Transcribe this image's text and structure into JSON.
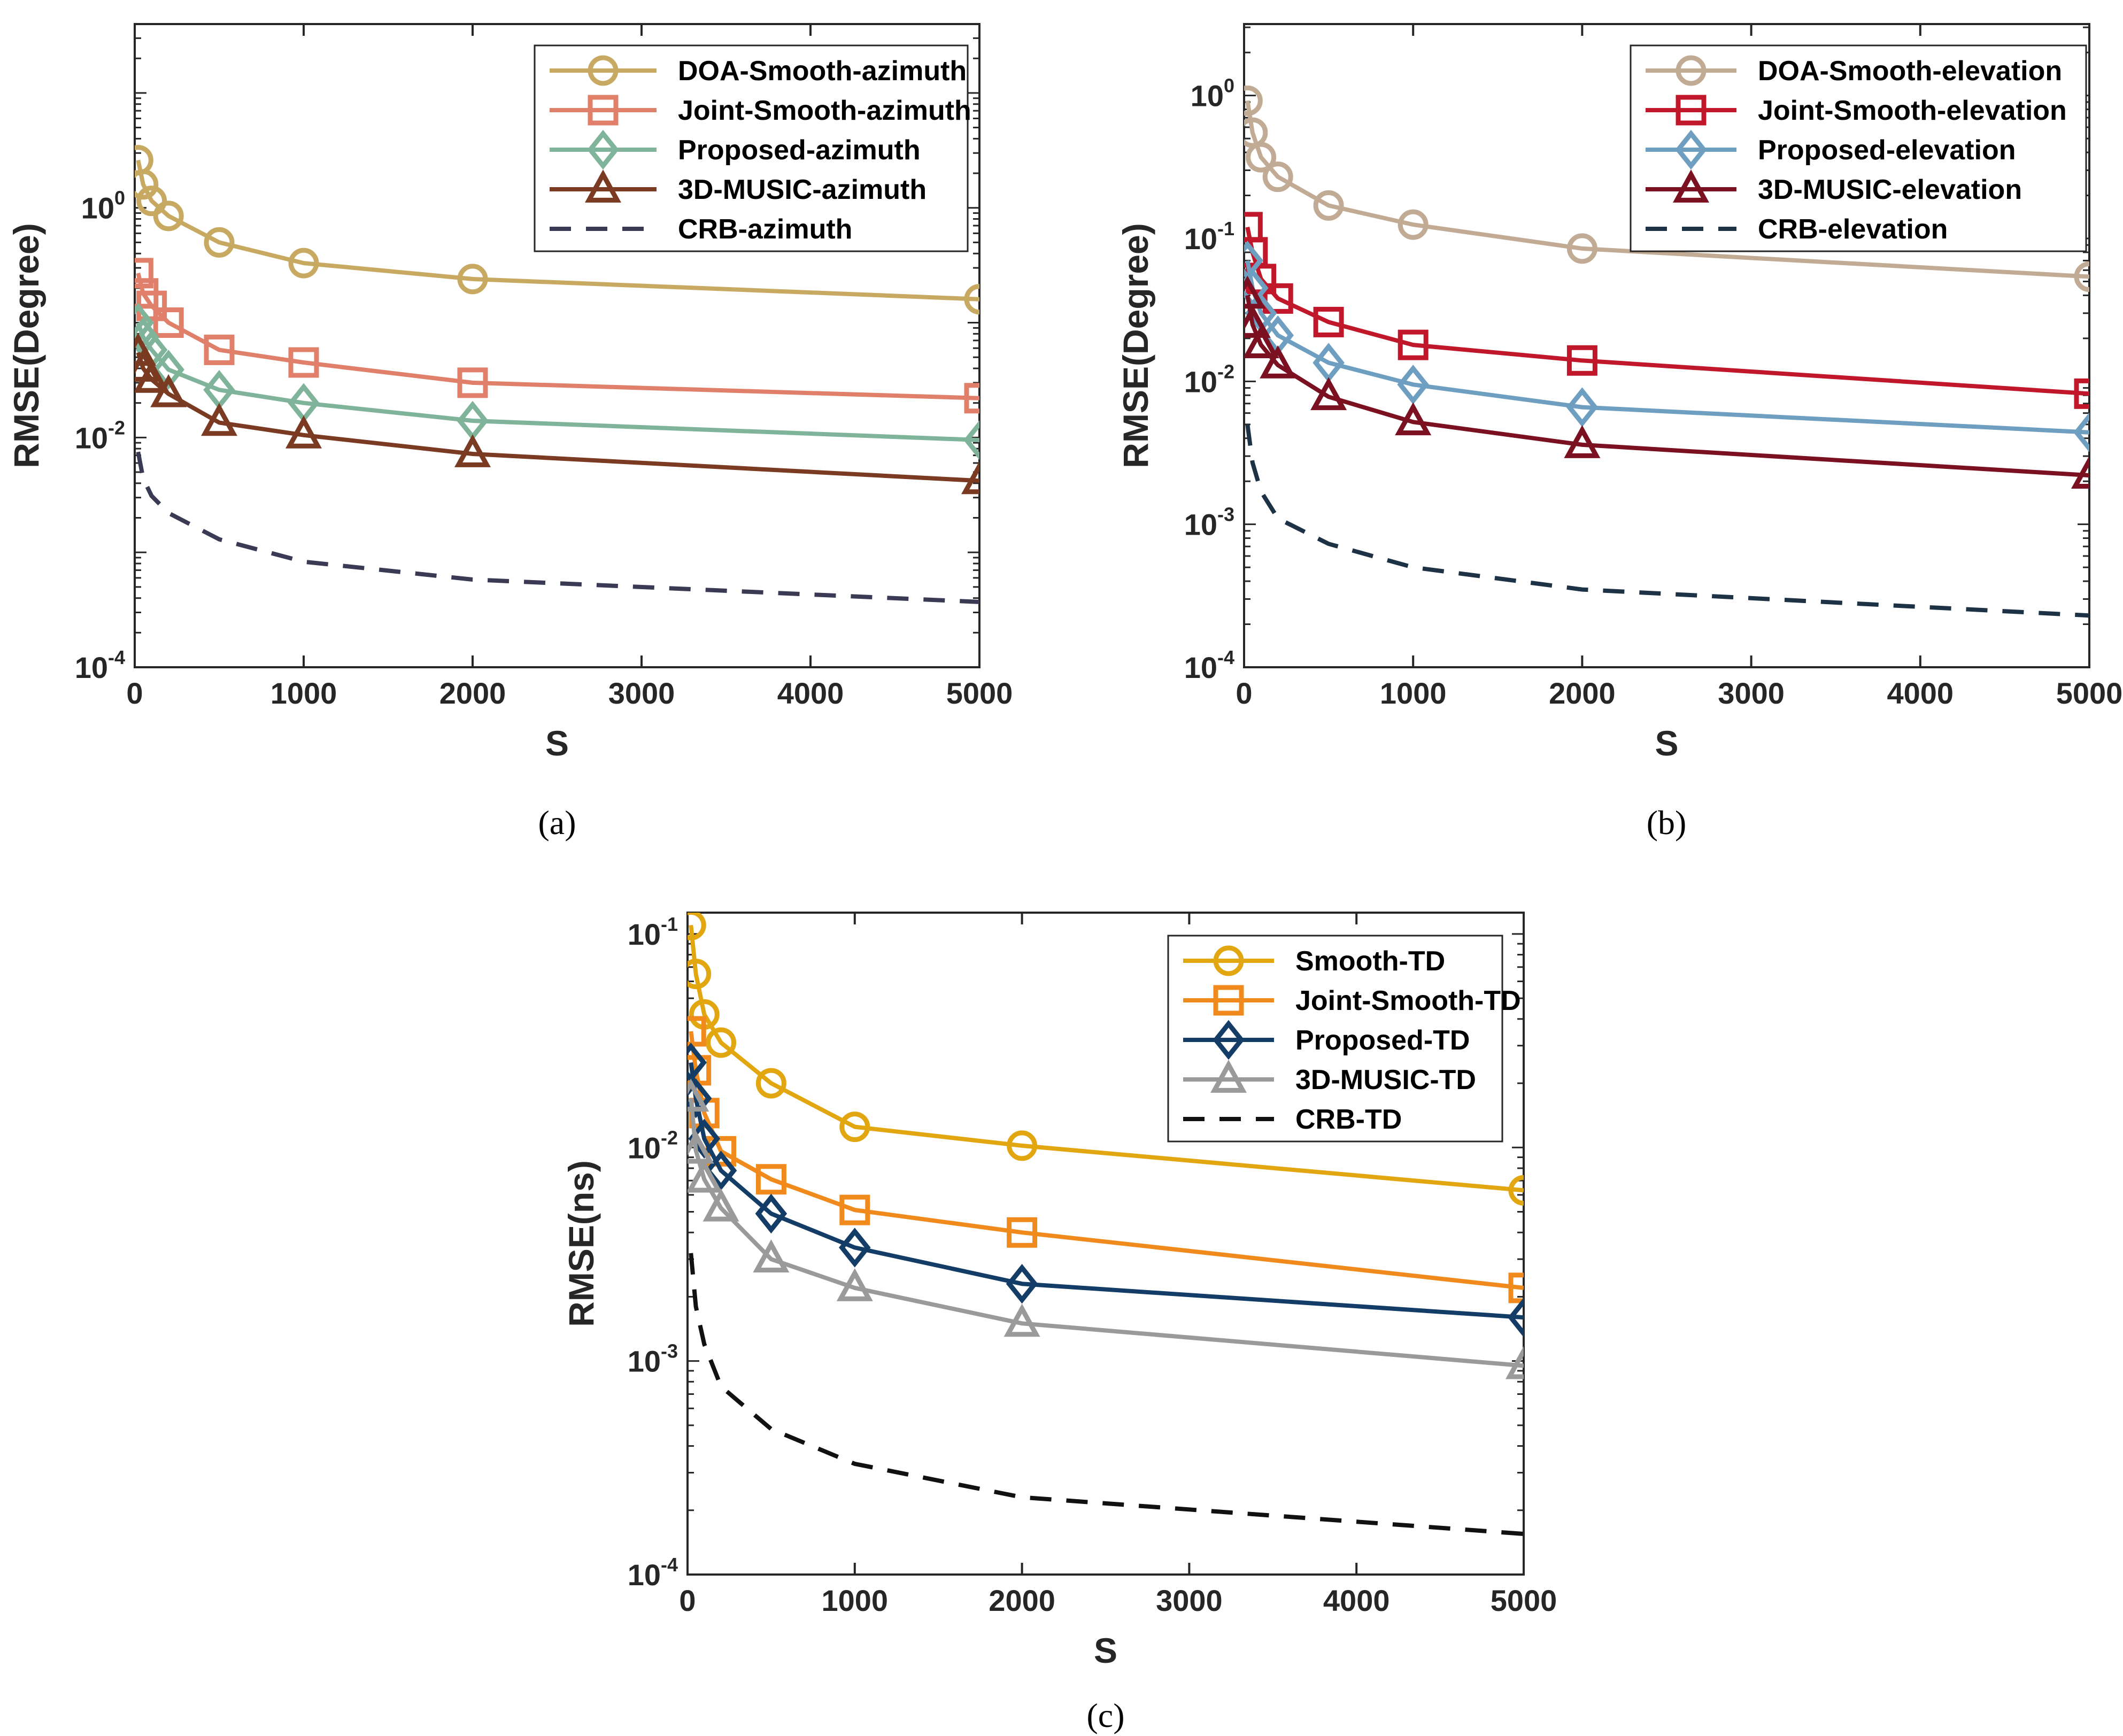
{
  "chart_data": [
    {
      "type": "line",
      "panel": "a",
      "caption": "(a)",
      "xlabel": "S",
      "ylabel": "RMSE(Degree)",
      "xlim": [
        0,
        5000
      ],
      "ylim_log10": [
        -4,
        1.6
      ],
      "yscale": "log",
      "x_ticks": [
        0,
        1000,
        2000,
        3000,
        4000,
        5000
      ],
      "x_tick_labels": [
        "0",
        "1000",
        "2000",
        "3000",
        "4000",
        "5000"
      ],
      "y_ticks_exp": [
        -4,
        -2,
        0
      ],
      "y_tick_labels": [
        {
          "base": "10",
          "exp": "-4"
        },
        {
          "base": "10",
          "exp": "-2"
        },
        {
          "base": "10",
          "exp": "0"
        }
      ],
      "legend_position": "top-right",
      "series": [
        {
          "name": "DOA-Smooth-azimuth",
          "color": "#C8A961",
          "marker": "circle",
          "dash": false,
          "x": [
            20,
            50,
            100,
            200,
            500,
            1000,
            2000,
            5000
          ],
          "values": [
            2.6,
            1.6,
            1.15,
            0.85,
            0.5,
            0.33,
            0.24,
            0.16
          ]
        },
        {
          "name": "Joint-Smooth-azimuth",
          "color": "#E0806A",
          "marker": "square",
          "dash": false,
          "x": [
            20,
            50,
            100,
            200,
            500,
            1000,
            2000,
            5000
          ],
          "values": [
            0.27,
            0.18,
            0.14,
            0.1,
            0.058,
            0.045,
            0.03,
            0.022
          ]
        },
        {
          "name": "Proposed-azimuth",
          "color": "#80B49A",
          "marker": "diamond",
          "dash": false,
          "x": [
            20,
            50,
            100,
            200,
            500,
            1000,
            2000,
            5000
          ],
          "values": [
            0.1,
            0.075,
            0.058,
            0.039,
            0.026,
            0.02,
            0.014,
            0.0095
          ]
        },
        {
          "name": "3D-MUSIC-azimuth",
          "color": "#7B3A22",
          "marker": "triangle",
          "dash": false,
          "x": [
            20,
            50,
            100,
            200,
            500,
            1000,
            2000,
            5000
          ],
          "values": [
            0.055,
            0.04,
            0.032,
            0.024,
            0.0135,
            0.0105,
            0.0072,
            0.0042
          ]
        },
        {
          "name": "CRB-azimuth",
          "color": "#3A3A55",
          "marker": "none",
          "dash": true,
          "x": [
            20,
            50,
            100,
            200,
            500,
            1000,
            2000,
            5000
          ],
          "values": [
            0.0075,
            0.0044,
            0.0031,
            0.0022,
            0.0013,
            0.00083,
            0.00058,
            0.00037
          ]
        }
      ]
    },
    {
      "type": "line",
      "panel": "b",
      "caption": "(b)",
      "xlabel": "S",
      "ylabel": "RMSE(Degree)",
      "xlim": [
        0,
        5000
      ],
      "ylim_log10": [
        -4,
        0.5
      ],
      "yscale": "log",
      "x_ticks": [
        0,
        1000,
        2000,
        3000,
        4000,
        5000
      ],
      "x_tick_labels": [
        "0",
        "1000",
        "2000",
        "3000",
        "4000",
        "5000"
      ],
      "y_ticks_exp": [
        -4,
        -3,
        -2,
        -1,
        0
      ],
      "y_tick_labels": [
        {
          "base": "10",
          "exp": "-4"
        },
        {
          "base": "10",
          "exp": "-3"
        },
        {
          "base": "10",
          "exp": "-2"
        },
        {
          "base": "10",
          "exp": "-1"
        },
        {
          "base": "10",
          "exp": "0"
        }
      ],
      "legend_position": "top-right",
      "series": [
        {
          "name": "DOA-Smooth-elevation",
          "color": "#C1AB94",
          "marker": "circle",
          "dash": false,
          "x": [
            20,
            50,
            100,
            200,
            500,
            1000,
            2000,
            5000
          ],
          "values": [
            0.92,
            0.55,
            0.37,
            0.27,
            0.17,
            0.125,
            0.085,
            0.054
          ]
        },
        {
          "name": "Joint-Smooth-elevation",
          "color": "#C0182A",
          "marker": "square",
          "dash": false,
          "x": [
            20,
            50,
            100,
            200,
            500,
            1000,
            2000,
            5000
          ],
          "values": [
            0.12,
            0.08,
            0.052,
            0.038,
            0.026,
            0.018,
            0.014,
            0.0082
          ]
        },
        {
          "name": "Proposed-elevation",
          "color": "#6E9EC0",
          "marker": "diamond",
          "dash": false,
          "x": [
            20,
            50,
            100,
            200,
            500,
            1000,
            2000,
            5000
          ],
          "values": [
            0.07,
            0.045,
            0.03,
            0.021,
            0.0135,
            0.0095,
            0.0066,
            0.0044
          ]
        },
        {
          "name": "3D-MUSIC-elevation",
          "color": "#7A1020",
          "marker": "triangle",
          "dash": false,
          "x": [
            20,
            50,
            100,
            200,
            500,
            1000,
            2000,
            5000
          ],
          "values": [
            0.04,
            0.025,
            0.018,
            0.013,
            0.0078,
            0.0052,
            0.0036,
            0.0022
          ]
        },
        {
          "name": "CRB-elevation",
          "color": "#1E3246",
          "marker": "none",
          "dash": true,
          "x": [
            20,
            50,
            100,
            200,
            500,
            1000,
            2000,
            5000
          ],
          "values": [
            0.005,
            0.0027,
            0.0017,
            0.0011,
            0.00073,
            0.0005,
            0.00035,
            0.00023
          ]
        }
      ]
    },
    {
      "type": "line",
      "panel": "c",
      "caption": "(c)",
      "xlabel": "S",
      "ylabel": "RMSE(ns)",
      "xlim": [
        0,
        5000
      ],
      "ylim_log10": [
        -4,
        -0.9
      ],
      "yscale": "log",
      "x_ticks": [
        0,
        1000,
        2000,
        3000,
        4000,
        5000
      ],
      "x_tick_labels": [
        "0",
        "1000",
        "2000",
        "3000",
        "4000",
        "5000"
      ],
      "y_ticks_exp": [
        -4,
        -3,
        -2,
        -1
      ],
      "y_tick_labels": [
        {
          "base": "10",
          "exp": "-4"
        },
        {
          "base": "10",
          "exp": "-3"
        },
        {
          "base": "10",
          "exp": "-2"
        },
        {
          "base": "10",
          "exp": "-1"
        }
      ],
      "legend_position": "top-right",
      "series": [
        {
          "name": "Smooth-TD",
          "color": "#E2A610",
          "marker": "circle",
          "dash": false,
          "x": [
            20,
            50,
            100,
            200,
            500,
            1000,
            2000,
            5000
          ],
          "values": [
            0.11,
            0.065,
            0.042,
            0.031,
            0.02,
            0.0125,
            0.0102,
            0.0063
          ]
        },
        {
          "name": "Joint-Smooth-TD",
          "color": "#F08A1C",
          "marker": "square",
          "dash": false,
          "x": [
            20,
            50,
            100,
            200,
            500,
            1000,
            2000,
            5000
          ],
          "values": [
            0.035,
            0.023,
            0.0145,
            0.0096,
            0.0071,
            0.0051,
            0.004,
            0.0022
          ]
        },
        {
          "name": "Proposed-TD",
          "color": "#133D66",
          "marker": "diamond",
          "dash": false,
          "x": [
            20,
            50,
            100,
            200,
            500,
            1000,
            2000,
            5000
          ],
          "values": [
            0.025,
            0.017,
            0.011,
            0.0078,
            0.0049,
            0.0034,
            0.0023,
            0.0016
          ]
        },
        {
          "name": "3D-MUSIC-TD",
          "color": "#9A9A9A",
          "marker": "triangle",
          "dash": false,
          "x": [
            20,
            50,
            100,
            200,
            500,
            1000,
            2000,
            5000
          ],
          "values": [
            0.017,
            0.0097,
            0.0071,
            0.0052,
            0.003,
            0.0022,
            0.0015,
            0.00095
          ]
        },
        {
          "name": "CRB-TD",
          "color": "#111111",
          "marker": "none",
          "dash": true,
          "x": [
            20,
            50,
            100,
            200,
            500,
            1000,
            2000,
            5000
          ],
          "values": [
            0.0032,
            0.0018,
            0.0012,
            0.00076,
            0.00048,
            0.00033,
            0.00023,
            0.000155
          ]
        }
      ]
    }
  ]
}
